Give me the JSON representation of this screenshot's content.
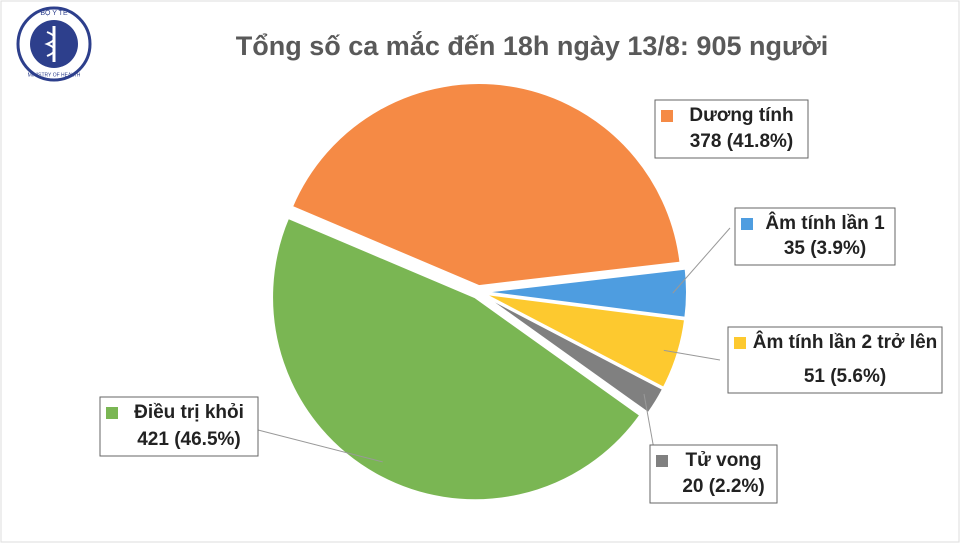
{
  "logo": {
    "top": "BỘ Y TẾ",
    "bottom": "MINISTRY OF HEALTH"
  },
  "chart_data": {
    "type": "pie",
    "title": "Tổng số ca mắc đến 18h ngày 13/8: 905 người",
    "categories": [
      "Dương tính",
      "Âm tính lần 1",
      "Âm tính lần 2 trở lên",
      "Tử vong",
      "Điều trị khỏi"
    ],
    "values": [
      378,
      35,
      51,
      20,
      421
    ],
    "value_labels": [
      "378 (41.8%)",
      "35 (3.9%)",
      "51 (5.6%)",
      "20 (2.2%)",
      "421 (46.5%)"
    ],
    "colors": [
      "#f58a45",
      "#4e9de0",
      "#fdc92f",
      "#808080",
      "#7ab653"
    ]
  }
}
